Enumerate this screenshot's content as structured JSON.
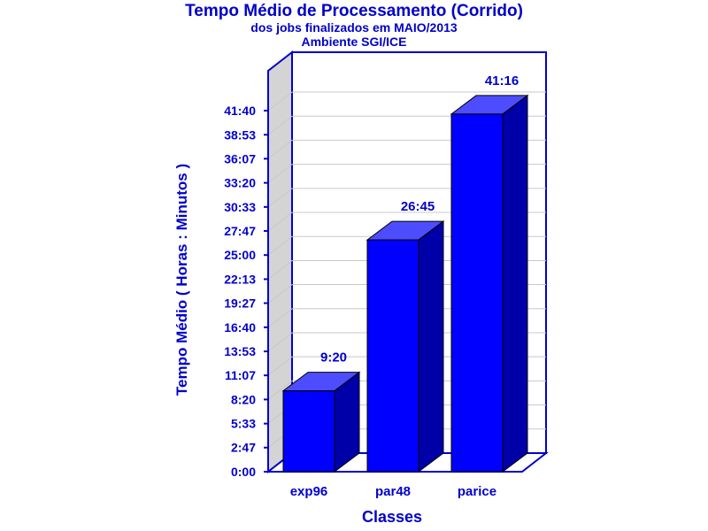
{
  "chart_data": {
    "type": "bar",
    "title": "Tempo Médio de Processamento (Corrido)",
    "subtitle": "dos jobs finalizados em MAIO/2013",
    "subtitle2": "Ambiente SGI/ICE",
    "xlabel": "Classes",
    "ylabel": "Tempo Médio ( Horas : Minutos )",
    "categories": [
      "exp96",
      "par48",
      "parice"
    ],
    "values": [
      560,
      1605,
      2476
    ],
    "value_labels": [
      "9:20",
      "26:45",
      "41:16"
    ],
    "yticks": [
      0,
      167,
      333,
      500,
      667,
      833,
      1000,
      1167,
      1333,
      1500,
      1667,
      1833,
      2000,
      2167,
      2333,
      2500
    ],
    "ytick_labels": [
      "0:00",
      "2:47",
      "5:33",
      "8:20",
      "11:07",
      "13:53",
      "16:40",
      "19:27",
      "22:13",
      "25:00",
      "27:47",
      "30:33",
      "33:20",
      "36:07",
      "38:53",
      "41:40"
    ],
    "ylim": [
      0,
      2500
    ],
    "grid": true,
    "legend": "none",
    "colors": {
      "bar_front": "#0000ff",
      "bar_top": "#4d4dff",
      "bar_side": "#0000a8",
      "axis": "#0000cc",
      "text": "#0000cc",
      "wall": "#d4d4d4",
      "grid": "#c8c8c8"
    }
  }
}
